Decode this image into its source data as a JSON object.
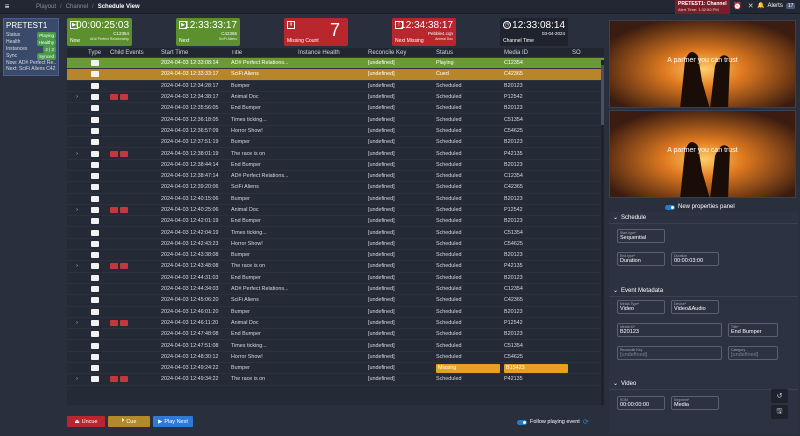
{
  "breadcrumb": [
    "Playout",
    "Channel",
    "Schedule View"
  ],
  "channel_alert": {
    "title": "PRETEST1: Channel",
    "sub": "Alert Time: 1:32:50 PM"
  },
  "alerts": {
    "label": "Alerts",
    "count": "17"
  },
  "left_panel": {
    "name": "PRETEST1",
    "rows": [
      {
        "k": "Status",
        "v": "Playing"
      },
      {
        "k": "Health",
        "v": "Healthy"
      },
      {
        "k": "Instances",
        "v": "2 | 2"
      },
      {
        "k": "Sync",
        "v": "Synced"
      }
    ],
    "now": "Now:  AD# Perfect Re...",
    "next": "Next:  SciFi Aliens C42..."
  },
  "tiles": {
    "now": {
      "label": "Now",
      "time": "00:00:25:03",
      "id": "C12354",
      "title": "AD# Perfect Relationship",
      "color": "#5c8f2e"
    },
    "next": {
      "label": "Next",
      "time": "12:33:33:17",
      "id": "C42365",
      "title": "SciFi Aliens",
      "color": "#5c8f2e"
    },
    "missing": {
      "label": "Missing Count",
      "value": "7",
      "color": "#b8262e"
    },
    "next_missing": {
      "label": "Next Missing",
      "time": "12:34:38:17",
      "id": "Pebble4.cqn",
      "title": "Animal Doc",
      "color": "#b8262e"
    },
    "channel_time": {
      "label": "Channel Time",
      "time": "12:33:08:14",
      "date": "03-04-2024"
    }
  },
  "table": {
    "headers": [
      "Type",
      "Child Events",
      "Start Time",
      "Title",
      "Instance Health",
      "Reconcile Key",
      "Status",
      "Media ID",
      "SO"
    ],
    "rows": [
      {
        "exp": "",
        "child": false,
        "start": "2024-04-03 12:33:08:14",
        "title": "AD# Perfect Relations...",
        "health": "green",
        "key": "[undefined]",
        "status": "Playing",
        "media": "C12354",
        "state": "playing"
      },
      {
        "exp": "",
        "child": false,
        "start": "2024-04-03 12:33:33:17",
        "title": "SciFi Aliens",
        "health": "green",
        "key": "[undefined]",
        "status": "Cued",
        "media": "C42365",
        "state": "cued"
      },
      {
        "exp": "",
        "child": false,
        "start": "2024-04-03 12:34:28:17",
        "title": "Bumper",
        "health": "green",
        "key": "[undefined]",
        "status": "Scheduled",
        "media": "B20123",
        "state": ""
      },
      {
        "exp": "›",
        "child": true,
        "start": "2024-04-03 12:34:38:17",
        "title": "Animal Doc",
        "health": "green",
        "key": "[undefined]",
        "status": "Scheduled",
        "media": "P12542",
        "state": ""
      },
      {
        "exp": "",
        "child": false,
        "start": "2024-04-03 12:35:56:05",
        "title": "End Bumper",
        "health": "green",
        "key": "[undefined]",
        "status": "Scheduled",
        "media": "B20123",
        "state": ""
      },
      {
        "exp": "",
        "child": false,
        "start": "2024-04-03 12:36:18:05",
        "title": "Times ticking...",
        "health": "green",
        "key": "[undefined]",
        "status": "Scheduled",
        "media": "C51354",
        "state": ""
      },
      {
        "exp": "",
        "child": false,
        "start": "2024-04-03 12:36:57:09",
        "title": "Horror Show!",
        "health": "green",
        "key": "[undefined]",
        "status": "Scheduled",
        "media": "C54625",
        "state": ""
      },
      {
        "exp": "",
        "child": false,
        "start": "2024-04-03 12:37:51:19",
        "title": "Bumper",
        "health": "green",
        "key": "[undefined]",
        "status": "Scheduled",
        "media": "B20123",
        "state": ""
      },
      {
        "exp": "›",
        "child": true,
        "start": "2024-04-03 12:38:01:19",
        "title": "The race is on",
        "health": "green",
        "key": "[undefined]",
        "status": "Scheduled",
        "media": "P42135",
        "state": ""
      },
      {
        "exp": "",
        "child": false,
        "start": "2024-04-03 12:38:44:14",
        "title": "End Bumper",
        "health": "green",
        "key": "[undefined]",
        "status": "Scheduled",
        "media": "B20123",
        "state": ""
      },
      {
        "exp": "",
        "child": false,
        "start": "2024-04-03 12:38:47:14",
        "title": "AD# Perfect Relations...",
        "health": "green",
        "key": "[undefined]",
        "status": "Scheduled",
        "media": "C12354",
        "state": ""
      },
      {
        "exp": "",
        "child": false,
        "start": "2024-04-03 12:39:20:06",
        "title": "SciFi Aliens",
        "health": "green",
        "key": "[undefined]",
        "status": "Scheduled",
        "media": "C42365",
        "state": ""
      },
      {
        "exp": "",
        "child": false,
        "start": "2024-04-03 12:40:15:06",
        "title": "Bumper",
        "health": "green",
        "key": "[undefined]",
        "status": "Scheduled",
        "media": "B20123",
        "state": ""
      },
      {
        "exp": "›",
        "child": true,
        "start": "2024-04-03 12:40:25:06",
        "title": "Animal Doc",
        "health": "green",
        "key": "[undefined]",
        "status": "Scheduled",
        "media": "P12542",
        "state": ""
      },
      {
        "exp": "",
        "child": false,
        "start": "2024-04-03 12:42:01:19",
        "title": "End Bumper",
        "health": "green",
        "key": "[undefined]",
        "status": "Scheduled",
        "media": "B20123",
        "state": ""
      },
      {
        "exp": "",
        "child": false,
        "start": "2024-04-03 12:42:04:19",
        "title": "Times ticking...",
        "health": "green",
        "key": "[undefined]",
        "status": "Scheduled",
        "media": "C51354",
        "state": ""
      },
      {
        "exp": "",
        "child": false,
        "start": "2024-04-03 12:42:43:23",
        "title": "Horror Show!",
        "health": "green",
        "key": "[undefined]",
        "status": "Scheduled",
        "media": "C54625",
        "state": ""
      },
      {
        "exp": "",
        "child": false,
        "start": "2024-04-03 12:43:38:08",
        "title": "Bumper",
        "health": "green",
        "key": "[undefined]",
        "status": "Scheduled",
        "media": "B20123",
        "state": ""
      },
      {
        "exp": "›",
        "child": true,
        "start": "2024-04-03 12:43:48:08",
        "title": "The race is on",
        "health": "green",
        "key": "[undefined]",
        "status": "Scheduled",
        "media": "P42135",
        "state": ""
      },
      {
        "exp": "",
        "child": false,
        "start": "2024-04-03 12:44:31:03",
        "title": "End Bumper",
        "health": "green",
        "key": "[undefined]",
        "status": "Scheduled",
        "media": "B20123",
        "state": ""
      },
      {
        "exp": "",
        "child": false,
        "start": "2024-04-03 12:44:34:03",
        "title": "AD# Perfect Relations...",
        "health": "green",
        "key": "[undefined]",
        "status": "Scheduled",
        "media": "C12354",
        "state": ""
      },
      {
        "exp": "",
        "child": false,
        "start": "2024-04-03 12:45:06:20",
        "title": "SciFi Aliens",
        "health": "green",
        "key": "[undefined]",
        "status": "Scheduled",
        "media": "C42365",
        "state": ""
      },
      {
        "exp": "",
        "child": false,
        "start": "2024-04-03 12:46:01:20",
        "title": "Bumper",
        "health": "green",
        "key": "[undefined]",
        "status": "Scheduled",
        "media": "B20123",
        "state": ""
      },
      {
        "exp": "›",
        "child": true,
        "start": "2024-04-03 12:46:11:20",
        "title": "Animal Doc",
        "health": "green",
        "key": "[undefined]",
        "status": "Scheduled",
        "media": "P12542",
        "state": ""
      },
      {
        "exp": "",
        "child": false,
        "start": "2024-04-03 12:47:48:08",
        "title": "End Bumper",
        "health": "green",
        "key": "[undefined]",
        "status": "Scheduled",
        "media": "B20123",
        "state": ""
      },
      {
        "exp": "",
        "child": false,
        "start": "2024-04-03 12:47:51:08",
        "title": "Times ticking...",
        "health": "green",
        "key": "[undefined]",
        "status": "Scheduled",
        "media": "C51354",
        "state": ""
      },
      {
        "exp": "",
        "child": false,
        "start": "2024-04-03 12:48:30:12",
        "title": "Horror Show!",
        "health": "green",
        "key": "[undefined]",
        "status": "Scheduled",
        "media": "C54625",
        "state": ""
      },
      {
        "exp": "",
        "child": false,
        "start": "2024-04-03 12:49:24:22",
        "title": "Bumper",
        "health": "red",
        "key": "[undefined]",
        "status": "Missing",
        "media": "B15423",
        "state": "missing"
      },
      {
        "exp": "›",
        "child": true,
        "start": "2024-04-03 12:49:34:22",
        "title": "The race is on",
        "health": "green",
        "key": "[undefined]",
        "status": "Scheduled",
        "media": "P42135",
        "state": ""
      }
    ]
  },
  "buttons": {
    "uncue": "Uncue",
    "cue": "Cue",
    "play_next": "Play Next"
  },
  "follow": "Follow playing event",
  "preview_caption": "A partner you can trust",
  "new_props": "New properties panel",
  "props": {
    "schedule": "Schedule",
    "start_type_label": "Start type*",
    "start_type": "Sequential",
    "end_type_label": "End type*",
    "end_type": "Duration",
    "duration_label": "Duration",
    "duration": "00:00:03:00",
    "event_meta": "Event Metadata",
    "media_type_label": "Media Type*",
    "media_type": "Video",
    "device_label": "Device*",
    "device": "Video&Audio",
    "media_id_label": "Media ID*",
    "media_id": "B20123",
    "title_label": "Title*",
    "title": "End Bumper",
    "reconcile_label": "Reconcile Key",
    "reconcile": "[undefined]",
    "category_label": "Category",
    "category": "[undefined]",
    "video": "Video",
    "som_label": "SOM",
    "som": "00:00:00:00",
    "segment_label": "Segment*",
    "segment": "Media"
  }
}
